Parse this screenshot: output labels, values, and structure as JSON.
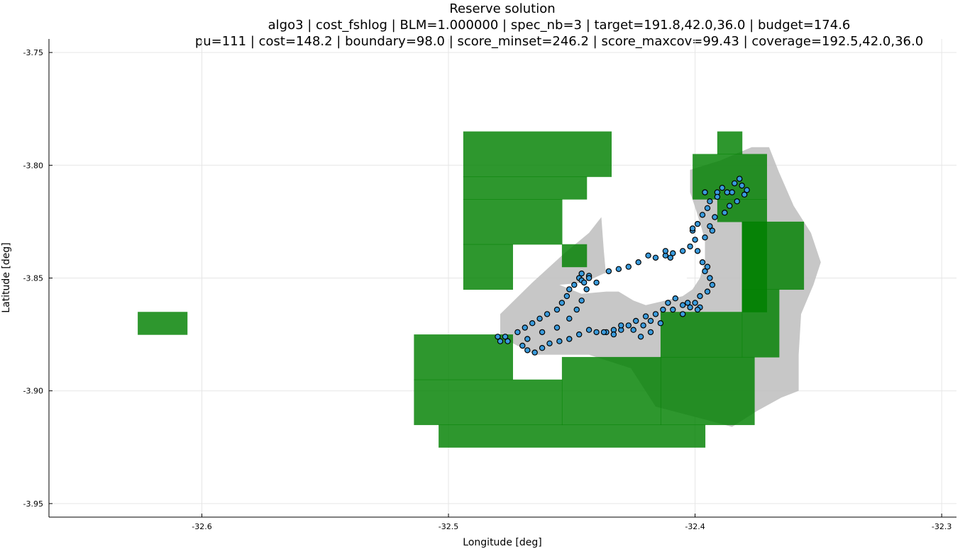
{
  "chart_data": {
    "type": "map",
    "title": "Reserve solution",
    "subtitle_line1": "algo3 | cost_fshlog | BLM=1.000000 | spec_nb=3 | target=191.8,42.0,36.0 | budget=174.6",
    "subtitle_line2": "pu=111 | cost=148.2 | boundary=98.0 | score_minset=246.2 | score_maxcov=99.43 | coverage=192.5,42.0,36.0",
    "xlabel": "Longitude [deg]",
    "ylabel": "Latitude [deg]",
    "xlim": [
      -32.662,
      -32.294
    ],
    "ylim": [
      -3.956,
      -3.744
    ],
    "xticks": [
      -32.6,
      -32.5,
      -32.4,
      -32.3
    ],
    "xtick_labels": [
      "-32.6",
      "-32.5",
      "-32.4",
      "-32.3"
    ],
    "yticks": [
      -3.75,
      -3.8,
      -3.85,
      -3.9,
      -3.95
    ],
    "ytick_labels": [
      "-3.75",
      "-3.80",
      "-3.85",
      "-3.90",
      "-3.95"
    ],
    "grid": true,
    "colors": {
      "reserve": "#008000",
      "island": "#bdbdbd",
      "track_fill": "#3a9bdc",
      "track_edge": "#000000",
      "grid": "#e6e6e6"
    },
    "island_polygon": [
      [
        -32.479,
        -3.866
      ],
      [
        -32.466,
        -3.852
      ],
      [
        -32.453,
        -3.839
      ],
      [
        -32.443,
        -3.83
      ],
      [
        -32.438,
        -3.823
      ],
      [
        -32.437,
        -3.838
      ],
      [
        -32.436,
        -3.85
      ],
      [
        -32.431,
        -3.856
      ],
      [
        -32.425,
        -3.86
      ],
      [
        -32.42,
        -3.862
      ],
      [
        -32.412,
        -3.86
      ],
      [
        -32.405,
        -3.858
      ],
      [
        -32.401,
        -3.855
      ],
      [
        -32.398,
        -3.85
      ],
      [
        -32.396,
        -3.842
      ],
      [
        -32.396,
        -3.833
      ],
      [
        -32.399,
        -3.822
      ],
      [
        -32.402,
        -3.812
      ],
      [
        -32.402,
        -3.802
      ],
      [
        -32.39,
        -3.798
      ],
      [
        -32.377,
        -3.792
      ],
      [
        -32.37,
        -3.792
      ],
      [
        -32.366,
        -3.803
      ],
      [
        -32.36,
        -3.818
      ],
      [
        -32.353,
        -3.83
      ],
      [
        -32.349,
        -3.843
      ],
      [
        -32.352,
        -3.853
      ],
      [
        -32.357,
        -3.866
      ],
      [
        -32.358,
        -3.884
      ],
      [
        -32.358,
        -3.9
      ],
      [
        -32.365,
        -3.903
      ],
      [
        -32.375,
        -3.909
      ],
      [
        -32.385,
        -3.916
      ],
      [
        -32.395,
        -3.913
      ],
      [
        -32.416,
        -3.907
      ],
      [
        -32.426,
        -3.89
      ],
      [
        -32.443,
        -3.884
      ],
      [
        -32.465,
        -3.884
      ],
      [
        -32.479,
        -3.876
      ]
    ],
    "lagoon_polygon": [
      [
        -32.455,
        -3.853
      ],
      [
        -32.445,
        -3.852
      ],
      [
        -32.437,
        -3.848
      ],
      [
        -32.427,
        -3.846
      ],
      [
        -32.418,
        -3.845
      ],
      [
        -32.409,
        -3.846
      ],
      [
        -32.404,
        -3.849
      ],
      [
        -32.402,
        -3.852
      ],
      [
        -32.406,
        -3.856
      ],
      [
        -32.414,
        -3.857
      ],
      [
        -32.425,
        -3.856
      ],
      [
        -32.436,
        -3.856
      ],
      [
        -32.446,
        -3.857
      ]
    ],
    "reserve_units": [
      [
        -32.626,
        -32.606,
        -3.865,
        -3.875
      ],
      [
        -32.494,
        -32.434,
        -3.785,
        -3.805
      ],
      [
        -32.494,
        -32.444,
        -3.805,
        -3.815
      ],
      [
        -32.494,
        -32.454,
        -3.815,
        -3.835
      ],
      [
        -32.494,
        -32.474,
        -3.835,
        -3.855
      ],
      [
        -32.454,
        -32.444,
        -3.835,
        -3.845
      ],
      [
        -32.391,
        -32.381,
        -3.785,
        -3.795
      ],
      [
        -32.401,
        -32.371,
        -3.795,
        -3.815
      ],
      [
        -32.391,
        -32.371,
        -3.815,
        -3.825
      ],
      [
        -32.381,
        -32.371,
        -3.825,
        -3.865
      ],
      [
        -32.381,
        -32.356,
        -3.825,
        -3.855
      ],
      [
        -32.381,
        -32.366,
        -3.855,
        -3.885
      ],
      [
        -32.414,
        -32.381,
        -3.865,
        -3.885
      ],
      [
        -32.414,
        -32.376,
        -3.885,
        -3.915
      ],
      [
        -32.514,
        -32.474,
        -3.875,
        -3.895
      ],
      [
        -32.514,
        -32.454,
        -3.895,
        -3.915
      ],
      [
        -32.454,
        -32.414,
        -3.885,
        -3.915
      ],
      [
        -32.504,
        -32.396,
        -3.915,
        -3.925
      ]
    ],
    "track_points": [
      [
        -32.48,
        -3.876
      ],
      [
        -32.479,
        -3.878
      ],
      [
        -32.477,
        -3.876
      ],
      [
        -32.476,
        -3.878
      ],
      [
        -32.472,
        -3.874
      ],
      [
        -32.469,
        -3.872
      ],
      [
        -32.466,
        -3.87
      ],
      [
        -32.463,
        -3.868
      ],
      [
        -32.46,
        -3.866
      ],
      [
        -32.456,
        -3.864
      ],
      [
        -32.454,
        -3.861
      ],
      [
        -32.452,
        -3.858
      ],
      [
        -32.451,
        -3.855
      ],
      [
        -32.449,
        -3.853
      ],
      [
        -32.447,
        -3.85
      ],
      [
        -32.446,
        -3.848
      ],
      [
        -32.443,
        -3.849
      ],
      [
        -32.44,
        -3.852
      ],
      [
        -32.435,
        -3.847
      ],
      [
        -32.431,
        -3.846
      ],
      [
        -32.427,
        -3.845
      ],
      [
        -32.423,
        -3.843
      ],
      [
        -32.419,
        -3.84
      ],
      [
        -32.416,
        -3.841
      ],
      [
        -32.412,
        -3.84
      ],
      [
        -32.409,
        -3.839
      ],
      [
        -32.405,
        -3.838
      ],
      [
        -32.402,
        -3.836
      ],
      [
        -32.4,
        -3.833
      ],
      [
        -32.401,
        -3.829
      ],
      [
        -32.399,
        -3.826
      ],
      [
        -32.397,
        -3.822
      ],
      [
        -32.395,
        -3.819
      ],
      [
        -32.394,
        -3.816
      ],
      [
        -32.396,
        -3.812
      ],
      [
        -32.391,
        -3.812
      ],
      [
        -32.389,
        -3.81
      ],
      [
        -32.385,
        -3.812
      ],
      [
        -32.381,
        -3.809
      ],
      [
        -32.379,
        -3.811
      ],
      [
        -32.383,
        -3.816
      ],
      [
        -32.386,
        -3.818
      ],
      [
        -32.388,
        -3.821
      ],
      [
        -32.392,
        -3.823
      ],
      [
        -32.394,
        -3.827
      ],
      [
        -32.396,
        -3.832
      ],
      [
        -32.399,
        -3.838
      ],
      [
        -32.397,
        -3.843
      ],
      [
        -32.396,
        -3.847
      ],
      [
        -32.394,
        -3.85
      ],
      [
        -32.393,
        -3.853
      ],
      [
        -32.395,
        -3.856
      ],
      [
        -32.398,
        -3.858
      ],
      [
        -32.4,
        -3.861
      ],
      [
        -32.402,
        -3.863
      ],
      [
        -32.405,
        -3.862
      ],
      [
        -32.408,
        -3.859
      ],
      [
        -32.411,
        -3.861
      ],
      [
        -32.413,
        -3.864
      ],
      [
        -32.416,
        -3.866
      ],
      [
        -32.418,
        -3.869
      ],
      [
        -32.421,
        -3.871
      ],
      [
        -32.424,
        -3.869
      ],
      [
        -32.427,
        -3.871
      ],
      [
        -32.43,
        -3.873
      ],
      [
        -32.433,
        -3.873
      ],
      [
        -32.436,
        -3.874
      ],
      [
        -32.44,
        -3.874
      ],
      [
        -32.443,
        -3.873
      ],
      [
        -32.447,
        -3.875
      ],
      [
        -32.451,
        -3.877
      ],
      [
        -32.455,
        -3.878
      ],
      [
        -32.459,
        -3.879
      ],
      [
        -32.462,
        -3.881
      ],
      [
        -32.465,
        -3.883
      ],
      [
        -32.468,
        -3.882
      ],
      [
        -32.47,
        -3.88
      ],
      [
        -32.468,
        -3.877
      ],
      [
        -32.462,
        -3.874
      ],
      [
        -32.456,
        -3.872
      ],
      [
        -32.451,
        -3.868
      ],
      [
        -32.448,
        -3.864
      ],
      [
        -32.446,
        -3.86
      ],
      [
        -32.444,
        -3.855
      ],
      [
        -32.446,
        -3.851
      ],
      [
        -32.425,
        -3.873
      ],
      [
        -32.422,
        -3.876
      ],
      [
        -32.418,
        -3.874
      ],
      [
        -32.42,
        -3.867
      ],
      [
        -32.414,
        -3.87
      ],
      [
        -32.409,
        -3.864
      ],
      [
        -32.405,
        -3.866
      ],
      [
        -32.403,
        -3.861
      ],
      [
        -32.398,
        -3.863
      ],
      [
        -32.399,
        -3.864
      ],
      [
        -32.384,
        -3.808
      ],
      [
        -32.382,
        -3.806
      ],
      [
        -32.38,
        -3.813
      ],
      [
        -32.387,
        -3.812
      ],
      [
        -32.391,
        -3.814
      ],
      [
        -32.393,
        -3.829
      ],
      [
        -32.401,
        -3.828
      ],
      [
        -32.412,
        -3.838
      ],
      [
        -32.41,
        -3.841
      ],
      [
        -32.395,
        -3.845
      ],
      [
        -32.437,
        -3.874
      ],
      [
        -32.433,
        -3.875
      ],
      [
        -32.43,
        -3.871
      ],
      [
        -32.445,
        -3.852
      ],
      [
        -32.443,
        -3.85
      ]
    ]
  }
}
